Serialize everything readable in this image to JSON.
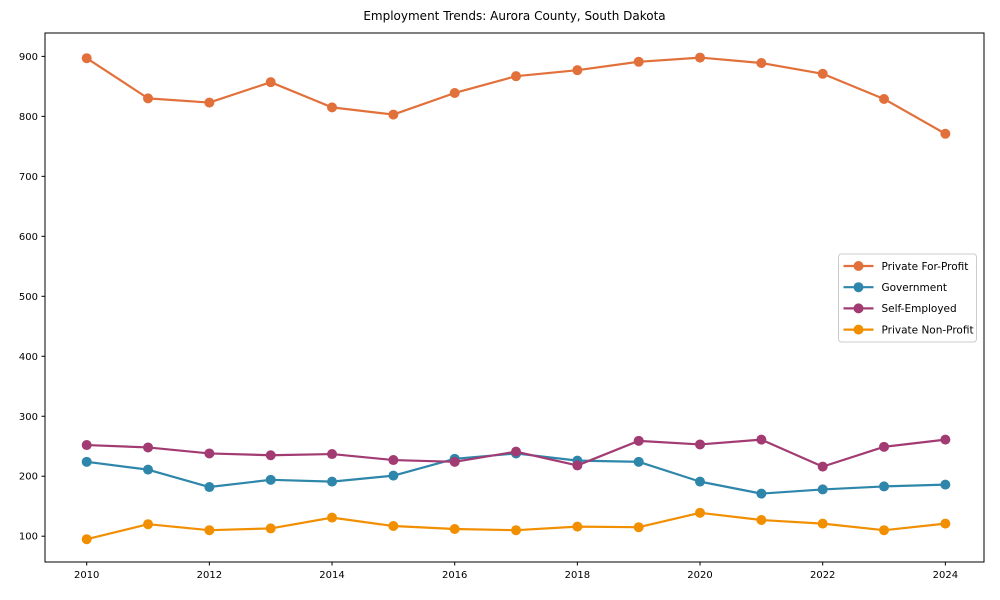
{
  "chart_data": {
    "type": "line",
    "title": "Employment Trends: Aurora County, South Dakota",
    "xlabel": "",
    "ylabel": "",
    "x": [
      2010,
      2011,
      2012,
      2013,
      2014,
      2015,
      2016,
      2017,
      2018,
      2019,
      2020,
      2021,
      2022,
      2023,
      2024
    ],
    "xtick_labels": [
      "2010",
      "2012",
      "2014",
      "2016",
      "2018",
      "2020",
      "2022",
      "2024"
    ],
    "xticks": [
      2010,
      2012,
      2014,
      2016,
      2018,
      2020,
      2022,
      2024
    ],
    "yticks": [
      100,
      200,
      300,
      400,
      500,
      600,
      700,
      800,
      900
    ],
    "xlim": [
      2009.32,
      2024.63
    ],
    "ylim": [
      57,
      939
    ],
    "grid": false,
    "legend_position": "center-right",
    "axis_color": "#000000",
    "legend_border_color": "#cccccc",
    "series": [
      {
        "name": "Private For-Profit",
        "color": "#E2703A",
        "values": [
          897,
          830,
          823,
          857,
          815,
          803,
          839,
          867,
          877,
          891,
          898,
          889,
          871,
          829,
          771
        ]
      },
      {
        "name": "Government",
        "color": "#2E86AB",
        "values": [
          224,
          211,
          182,
          194,
          191,
          201,
          229,
          238,
          226,
          224,
          191,
          171,
          178,
          183,
          186
        ]
      },
      {
        "name": "Self-Employed",
        "color": "#A23B72",
        "values": [
          252,
          248,
          238,
          235,
          237,
          227,
          224,
          241,
          218,
          259,
          253,
          261,
          216,
          249,
          261
        ]
      },
      {
        "name": "Private Non-Profit",
        "color": "#F18F01",
        "values": [
          95,
          120,
          110,
          113,
          131,
          117,
          112,
          110,
          116,
          115,
          139,
          127,
          121,
          110,
          121
        ]
      }
    ]
  }
}
